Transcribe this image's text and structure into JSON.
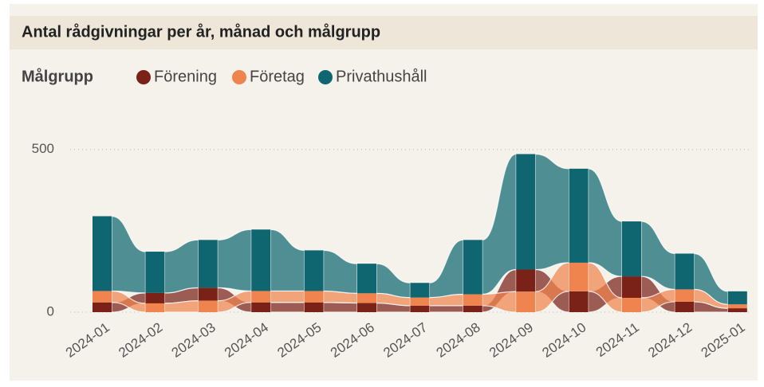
{
  "chart_data": {
    "type": "ribbon",
    "title": "Antal rådgivningar per år, månad och målgrupp",
    "legend_title": "Målgrupp",
    "categories": [
      "2024-01",
      "2024-02",
      "2024-03",
      "2024-04",
      "2024-05",
      "2024-06",
      "2024-07",
      "2024-08",
      "2024-09",
      "2024-10",
      "2024-11",
      "2024-12",
      "2025-01"
    ],
    "series": [
      {
        "name": "Förening",
        "color": "#7a2118",
        "values": [
          30,
          32,
          40,
          30,
          30,
          28,
          20,
          20,
          68,
          64,
          66,
          32,
          12
        ]
      },
      {
        "name": "Företag",
        "color": "#f0844e",
        "values": [
          35,
          27,
          35,
          35,
          35,
          30,
          25,
          35,
          63,
          88,
          44,
          38,
          12
        ]
      },
      {
        "name": "Privathushåll",
        "color": "#0f6670",
        "values": [
          230,
          127,
          147,
          189,
          125,
          91,
          45,
          167,
          355,
          289,
          169,
          110,
          40
        ]
      }
    ],
    "ylim": [
      0,
      590
    ],
    "yticks": [
      0,
      500
    ],
    "grid": true
  }
}
